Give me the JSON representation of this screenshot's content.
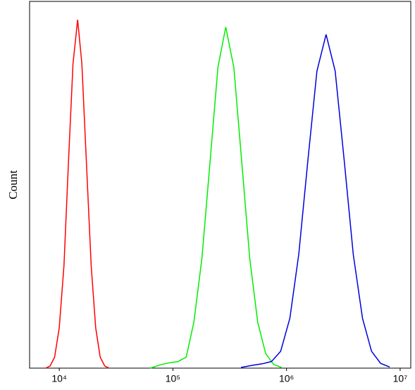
{
  "chart_data": {
    "type": "line",
    "xscale": "log",
    "ylabel": "Count",
    "xlim": [
      5480,
      12400000
    ],
    "ylim": [
      0,
      100
    ],
    "xticks": [
      {
        "value": 10000,
        "label": "10⁴"
      },
      {
        "value": 100000,
        "label": "10⁵"
      },
      {
        "value": 1000000,
        "label": "10⁶"
      },
      {
        "value": 10000000,
        "label": "10⁷"
      }
    ],
    "series": [
      {
        "color": "#ff0000",
        "x": [
          7600,
          8300,
          9100,
          10000,
          11000,
          12000,
          13200,
          14500,
          15800,
          17400,
          19100,
          20900,
          22900,
          25100,
          27500
        ],
        "values": [
          0,
          0.6,
          3,
          11,
          28,
          55,
          83,
          95,
          83,
          55,
          28,
          11,
          3,
          0.6,
          0
        ]
      },
      {
        "color": "#00ee00",
        "x": [
          63100,
          79400,
          94600,
          111000,
          131000,
          153000,
          180000,
          212000,
          249000,
          292000,
          344000,
          404000,
          474000,
          557000,
          655000,
          769000,
          904000
        ],
        "values": [
          0,
          1,
          1.5,
          1.8,
          3,
          12.6,
          30,
          56,
          82,
          93,
          82,
          56,
          30,
          12.6,
          4,
          1,
          0.2
        ]
      },
      {
        "color": "#0000dd",
        "x": [
          398000,
          511000,
          614000,
          738000,
          887000,
          1070000,
          1280000,
          1540000,
          1850000,
          2230000,
          2680000,
          3220000,
          3870000,
          4660000,
          5600000,
          6730000,
          8090000
        ],
        "values": [
          0.2,
          0.8,
          1.2,
          1.8,
          4.6,
          13.6,
          31,
          56.5,
          81,
          91,
          81,
          56.5,
          31,
          13.6,
          4.6,
          1.3,
          0.3
        ]
      }
    ]
  }
}
